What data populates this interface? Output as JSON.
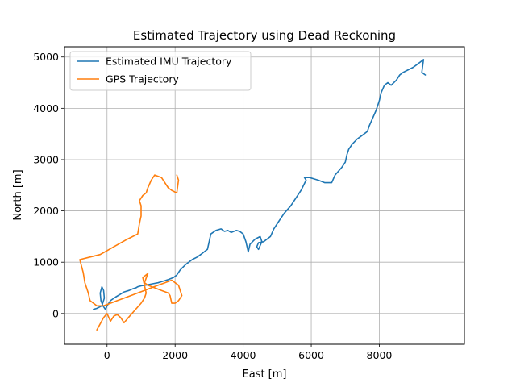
{
  "chart_data": {
    "type": "line",
    "title": "Estimated Trajectory using Dead Reckoning",
    "xlabel": "East [m]",
    "ylabel": "North [m]",
    "xlim": [
      -1250,
      10500
    ],
    "ylim": [
      -600,
      5200
    ],
    "xticks": [
      0,
      2000,
      4000,
      6000,
      8000
    ],
    "yticks": [
      0,
      1000,
      2000,
      3000,
      4000,
      5000
    ],
    "grid": true,
    "legend_position": "top-left",
    "series": [
      {
        "name": "Estimated IMU Trajectory",
        "color": "#1f77b4",
        "x": [
          -400,
          -300,
          -150,
          -80,
          -100,
          -150,
          -200,
          -180,
          -120,
          -50,
          0,
          100,
          250,
          400,
          500,
          650,
          750,
          850,
          900,
          1000,
          1200,
          1350,
          1500,
          1600,
          1700,
          1800,
          1950,
          2050,
          2150,
          2300,
          2500,
          2650,
          2750,
          2850,
          2950,
          3000,
          3050,
          3200,
          3350,
          3450,
          3550,
          3650,
          3800,
          3900,
          4000,
          4080,
          4150,
          4200,
          4350,
          4500,
          4550,
          4450,
          4400,
          4450,
          4600,
          4800,
          4900,
          5000,
          5100,
          5200,
          5400,
          5550,
          5700,
          5850,
          5800,
          5950,
          6100,
          6200,
          6400,
          6600,
          6700,
          6900,
          7000,
          7050,
          7100,
          7200,
          7350,
          7450,
          7550,
          7650,
          7700,
          7800,
          7900,
          7950,
          8000,
          8050,
          8150,
          8250,
          8350,
          8500,
          8600,
          8700,
          8850,
          9000,
          9100,
          9200,
          9300,
          9250,
          9350
        ],
        "y": [
          80,
          100,
          150,
          300,
          450,
          520,
          400,
          250,
          150,
          80,
          150,
          250,
          320,
          380,
          420,
          450,
          480,
          500,
          520,
          540,
          560,
          580,
          600,
          620,
          640,
          660,
          700,
          750,
          850,
          950,
          1050,
          1100,
          1150,
          1200,
          1250,
          1400,
          1550,
          1620,
          1650,
          1600,
          1620,
          1580,
          1620,
          1600,
          1550,
          1400,
          1200,
          1350,
          1450,
          1500,
          1400,
          1250,
          1300,
          1380,
          1400,
          1500,
          1650,
          1750,
          1850,
          1950,
          2100,
          2250,
          2400,
          2600,
          2650,
          2650,
          2620,
          2600,
          2550,
          2550,
          2700,
          2850,
          2950,
          3100,
          3200,
          3300,
          3400,
          3450,
          3500,
          3550,
          3650,
          3800,
          3950,
          4050,
          4150,
          4300,
          4450,
          4500,
          4450,
          4550,
          4650,
          4700,
          4750,
          4800,
          4850,
          4900,
          4950,
          4700,
          4650
        ]
      },
      {
        "name": "GPS Trajectory",
        "color": "#ff7f0e",
        "x": [
          -300,
          -200,
          -100,
          0,
          100,
          200,
          300,
          400,
          500,
          600,
          800,
          1000,
          1100,
          1150,
          1100,
          1050,
          1200,
          1100,
          1200,
          1400,
          1600,
          1800,
          1850,
          1900,
          2000,
          2100,
          2200,
          2150,
          2100,
          1900,
          1700,
          1500,
          1300,
          1100,
          900,
          700,
          500,
          300,
          100,
          -100,
          -300,
          -500,
          -550,
          -600,
          -650,
          -700,
          -800,
          -500,
          -200,
          200,
          600,
          900,
          950,
          1000,
          1000,
          950,
          1050,
          1150,
          1200,
          1300,
          1400,
          1600,
          1700,
          1800,
          1900,
          2050,
          2100,
          2050
        ],
        "y": [
          -320,
          -200,
          -80,
          0,
          -150,
          -50,
          -20,
          -80,
          -180,
          -100,
          50,
          200,
          300,
          400,
          550,
          700,
          780,
          600,
          550,
          500,
          450,
          400,
          350,
          200,
          200,
          250,
          350,
          450,
          550,
          650,
          600,
          550,
          500,
          450,
          400,
          350,
          300,
          250,
          200,
          150,
          150,
          250,
          400,
          500,
          600,
          800,
          1050,
          1100,
          1150,
          1300,
          1450,
          1550,
          1750,
          1900,
          2100,
          2200,
          2300,
          2350,
          2450,
          2600,
          2700,
          2650,
          2550,
          2450,
          2400,
          2350,
          2600,
          2700
        ]
      }
    ]
  }
}
